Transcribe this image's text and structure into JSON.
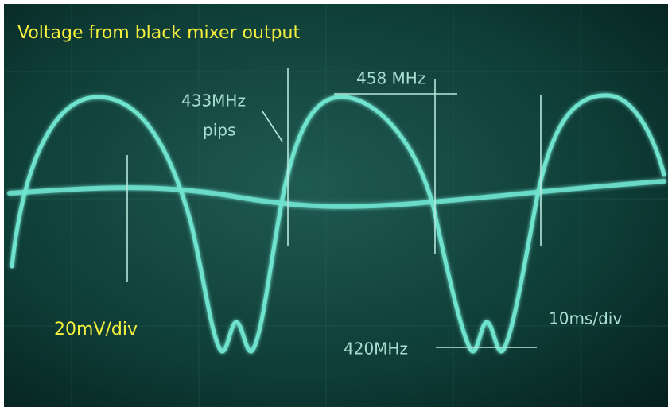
{
  "title": "Voltage from black mixer output",
  "annotations": {
    "pips_freq": "433MHz",
    "pips": "pips",
    "upper_freq": "458 MHz",
    "lower_freq": "420MHz",
    "vertical_scale": "20mV/div",
    "time_scale": "10ms/div"
  }
}
